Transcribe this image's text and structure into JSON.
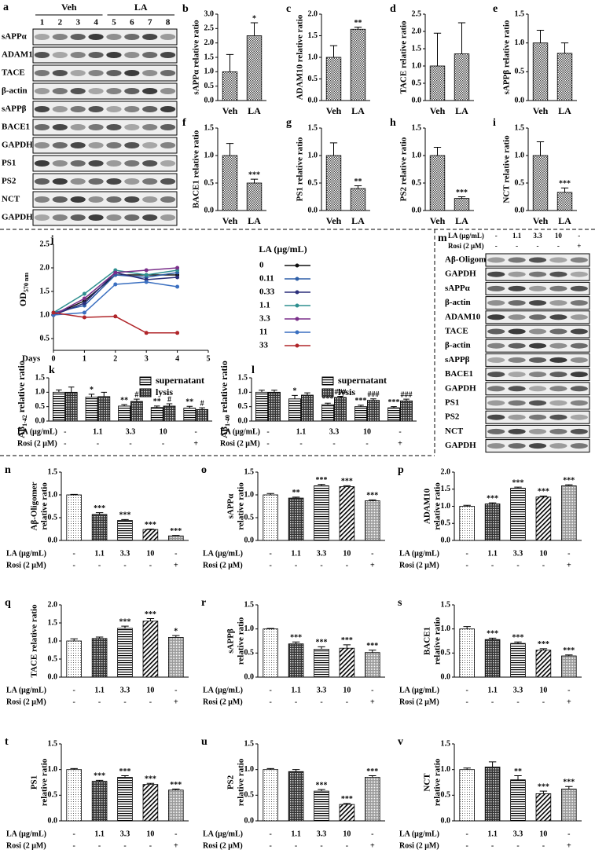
{
  "treatments": {
    "rows": [
      {
        "label": "LA (μg/mL)",
        "values": [
          "-",
          "1.1",
          "3.3",
          "10",
          "-"
        ]
      },
      {
        "label": "Rosi (2 μM)",
        "values": [
          "-",
          "-",
          "-",
          "-",
          "+"
        ]
      }
    ]
  },
  "blots": [
    {
      "panel": "a",
      "groups": [
        {
          "label": "Veh",
          "lanes": [
            "1",
            "2",
            "3",
            "4"
          ]
        },
        {
          "label": "LA",
          "lanes": [
            "5",
            "6",
            "7",
            "8"
          ]
        }
      ],
      "rows": [
        "sAPPα",
        "ADAM10",
        "TACE",
        "β-actin",
        "sAPPβ",
        "BACE1",
        "GAPDH",
        "PS1",
        "PS2",
        "NCT",
        "GAPDH"
      ]
    },
    {
      "panel": "m",
      "rows": [
        "Aβ-Oligomer",
        "GAPDH",
        "sAPPα",
        "β-actin",
        "ADAM10",
        "TACE",
        "β-actin",
        "sAPPβ",
        "BACE1",
        "GAPDH",
        "PS1",
        "PS2",
        "NCT",
        "GAPDH"
      ]
    }
  ],
  "chart_data": [
    {
      "type": "bar",
      "panel": "b",
      "ylabel": "sAPPα relative ratio",
      "categories": [
        "Veh",
        "LA"
      ],
      "values": [
        1.0,
        2.25
      ],
      "errors": [
        0.6,
        0.45
      ],
      "significance": [
        null,
        "*"
      ],
      "ylim": [
        0,
        3
      ],
      "yticks": [
        {
          "value": 0,
          "label": "0.0"
        },
        0.5,
        {
          "value": 1,
          "label": "1.0"
        },
        1.5,
        {
          "value": 2,
          "label": "2.0"
        },
        2.5,
        {
          "value": 3,
          "label": "3.0"
        }
      ]
    },
    {
      "type": "bar",
      "panel": "c",
      "ylabel": "ADAM10 relative ratio",
      "categories": [
        "Veh",
        "LA"
      ],
      "values": [
        1.0,
        1.65
      ],
      "errors": [
        0.27,
        0.05
      ],
      "significance": [
        null,
        "**"
      ],
      "ylim": [
        0,
        2
      ],
      "yticks": [
        {
          "value": 0,
          "label": "0.0"
        },
        0.5,
        {
          "value": 1,
          "label": "1.0"
        },
        1.5,
        {
          "value": 2,
          "label": "2.0"
        }
      ]
    },
    {
      "type": "bar",
      "panel": "d",
      "ylabel": "TACE relative ratio",
      "categories": [
        "Veh",
        "LA"
      ],
      "values": [
        1.0,
        1.35
      ],
      "errors": [
        0.95,
        0.9
      ],
      "significance": [
        null,
        null
      ],
      "ylim": [
        0,
        2.5
      ],
      "yticks": [
        {
          "value": 0,
          "label": "0.0"
        },
        0.5,
        {
          "value": 1,
          "label": "1.0"
        },
        1.5,
        {
          "value": 2,
          "label": "2.0"
        },
        2.5
      ]
    },
    {
      "type": "bar",
      "panel": "e",
      "ylabel": "sAPPβ relative ratio",
      "categories": [
        "Veh",
        "LA"
      ],
      "values": [
        1.0,
        0.82
      ],
      "errors": [
        0.22,
        0.18
      ],
      "significance": [
        null,
        null
      ],
      "ylim": [
        0,
        1.5
      ],
      "yticks": [
        {
          "value": 0,
          "label": "0.0"
        },
        0.5,
        {
          "value": 1,
          "label": "1.0"
        },
        1.5
      ]
    },
    {
      "type": "bar",
      "panel": "f",
      "ylabel": "BACE1 relative ratio",
      "categories": [
        "Veh",
        "LA"
      ],
      "values": [
        1.0,
        0.5
      ],
      "errors": [
        0.22,
        0.07
      ],
      "significance": [
        null,
        "***"
      ],
      "ylim": [
        0,
        1.5
      ],
      "yticks": [
        {
          "value": 0,
          "label": "0.0"
        },
        0.5,
        {
          "value": 1,
          "label": "1.0"
        },
        1.5
      ]
    },
    {
      "type": "bar",
      "panel": "g",
      "ylabel": "PS1 relative ratio",
      "categories": [
        "Veh",
        "LA"
      ],
      "values": [
        1.0,
        0.4
      ],
      "errors": [
        0.23,
        0.05
      ],
      "significance": [
        null,
        "**"
      ],
      "ylim": [
        0,
        1.5
      ],
      "yticks": [
        {
          "value": 0,
          "label": "0.0"
        },
        0.5,
        {
          "value": 1,
          "label": "1.0"
        },
        1.5
      ]
    },
    {
      "type": "bar",
      "panel": "h",
      "ylabel": "PS2 relative ratio",
      "categories": [
        "Veh",
        "LA"
      ],
      "values": [
        1.0,
        0.22
      ],
      "errors": [
        0.15,
        0.03
      ],
      "significance": [
        null,
        "***"
      ],
      "ylim": [
        0,
        1.5
      ],
      "yticks": [
        {
          "value": 0,
          "label": "0.0"
        },
        0.5,
        {
          "value": 1,
          "label": "1.0"
        },
        1.5
      ]
    },
    {
      "type": "bar",
      "panel": "i",
      "ylabel": "NCT relative ratio",
      "categories": [
        "Veh",
        "LA"
      ],
      "values": [
        1.0,
        0.33
      ],
      "errors": [
        0.25,
        0.08
      ],
      "significance": [
        null,
        "***"
      ],
      "ylim": [
        0,
        1.5
      ],
      "yticks": [
        {
          "value": 0,
          "label": "0.0"
        },
        0.5,
        {
          "value": 1,
          "label": "1.0"
        },
        1.5
      ]
    },
    {
      "type": "line",
      "panel": "j",
      "ylabel_parts": [
        {
          "text": "OD"
        },
        {
          "text": "570 nm",
          "sub": true
        }
      ],
      "xlabel": "Days",
      "legend_title": "LA (μg/mL)",
      "x": [
        0,
        1,
        2,
        3,
        4
      ],
      "xlim": [
        0,
        5
      ],
      "xticks": [
        0,
        1,
        2,
        3,
        4,
        5
      ],
      "ylim": [
        0.25,
        2.5
      ],
      "yticks": [
        0.5,
        {
          "value": 1,
          "label": "1.0"
        },
        1.5,
        {
          "value": 2,
          "label": "2.0"
        },
        2.5
      ],
      "series": [
        {
          "name": "0",
          "color": "#111111",
          "values": [
            1.0,
            1.3,
            1.85,
            1.85,
            1.85
          ]
        },
        {
          "name": "0.11",
          "color": "#2e5fa8",
          "values": [
            1.05,
            1.2,
            1.85,
            1.8,
            1.9
          ]
        },
        {
          "name": "0.33",
          "color": "#2b2f7a",
          "values": [
            1.0,
            1.25,
            1.9,
            1.75,
            1.8
          ]
        },
        {
          "name": "1.1",
          "color": "#2f8f8f",
          "values": [
            1.05,
            1.45,
            1.95,
            1.85,
            1.95
          ]
        },
        {
          "name": "3.3",
          "color": "#7a2f8a",
          "values": [
            1.0,
            1.35,
            1.9,
            1.95,
            2.0
          ]
        },
        {
          "name": "11",
          "color": "#3a6fc0",
          "values": [
            1.0,
            1.05,
            1.65,
            1.7,
            1.6
          ]
        },
        {
          "name": "33",
          "color": "#b0262a",
          "values": [
            1.05,
            0.95,
            0.97,
            0.62,
            0.62
          ]
        }
      ]
    },
    {
      "type": "grouped_bar",
      "panel": "k",
      "ylabel_parts": [
        {
          "text": "Aβ"
        },
        {
          "text": "1-42",
          "sub": true
        },
        {
          "text": " relative ratio"
        }
      ],
      "ylim": [
        0,
        1.5
      ],
      "yticks": [
        {
          "value": 0,
          "label": "0.0"
        },
        0.5,
        {
          "value": 1,
          "label": "1.0"
        },
        1.5
      ],
      "series": [
        {
          "name": "supernatant",
          "values": [
            1.0,
            0.83,
            0.52,
            0.47,
            0.45
          ],
          "errors": [
            0.08,
            0.1,
            0.05,
            0.05,
            0.06
          ],
          "significance": [
            null,
            "*",
            "**",
            "**",
            "**"
          ]
        },
        {
          "name": "lysis",
          "values": [
            1.0,
            0.85,
            0.68,
            0.52,
            0.4
          ],
          "errors": [
            0.18,
            0.15,
            0.08,
            0.08,
            0.06
          ],
          "significance": [
            null,
            null,
            "#",
            "#",
            "#"
          ]
        }
      ]
    },
    {
      "type": "grouped_bar",
      "panel": "l",
      "ylabel_parts": [
        {
          "text": "Aβ"
        },
        {
          "text": "1-40",
          "sub": true
        },
        {
          "text": " relative ratio"
        }
      ],
      "ylim": [
        0,
        1.5
      ],
      "yticks": [
        {
          "value": 0,
          "label": "0.0"
        },
        0.5,
        {
          "value": 1,
          "label": "1.0"
        },
        1.5
      ],
      "series": [
        {
          "name": "supernatant",
          "values": [
            1.0,
            0.77,
            0.57,
            0.5,
            0.46
          ],
          "errors": [
            0.07,
            0.12,
            0.05,
            0.05,
            0.04
          ],
          "significance": [
            null,
            "*",
            "***",
            "***",
            "***"
          ]
        },
        {
          "name": "lysis",
          "values": [
            1.0,
            0.9,
            0.82,
            0.72,
            0.7
          ],
          "errors": [
            0.07,
            0.08,
            0.04,
            0.05,
            0.06
          ],
          "significance": [
            null,
            null,
            "###",
            "###",
            "###"
          ]
        }
      ]
    },
    {
      "type": "treatment_bar",
      "panel": "n",
      "ylabel": [
        "Aβ-Oligomer",
        "relative ratio"
      ],
      "values": [
        1.0,
        0.57,
        0.44,
        0.24,
        0.1
      ],
      "errors": [
        0.01,
        0.04,
        0.02,
        0.01,
        0.01
      ],
      "significance": [
        null,
        "***",
        "***",
        "***",
        "***"
      ],
      "ylim": [
        0,
        1.5
      ],
      "yticks": [
        {
          "value": 0,
          "label": "0.0"
        },
        0.5,
        {
          "value": 1,
          "label": "1.0"
        },
        1.5
      ]
    },
    {
      "type": "treatment_bar",
      "panel": "o",
      "ylabel": [
        "sAPPα",
        "relative ratio"
      ],
      "values": [
        1.0,
        0.93,
        1.2,
        1.18,
        0.87
      ],
      "errors": [
        0.03,
        0.02,
        0.03,
        0.02,
        0.02
      ],
      "significance": [
        null,
        "**",
        "***",
        "***",
        "***"
      ],
      "ylim": [
        0,
        1.5
      ],
      "yticks": [
        {
          "value": 0,
          "label": "0.0"
        },
        0.5,
        {
          "value": 1,
          "label": "1.0"
        },
        1.5
      ]
    },
    {
      "type": "treatment_bar",
      "panel": "p",
      "ylabel": [
        "ADAM10",
        "relative ratio"
      ],
      "values": [
        1.0,
        1.07,
        1.53,
        1.27,
        1.6
      ],
      "errors": [
        0.03,
        0.03,
        0.03,
        0.03,
        0.03
      ],
      "significance": [
        null,
        "***",
        "***",
        "***",
        "***"
      ],
      "ylim": [
        0,
        2
      ],
      "yticks": [
        {
          "value": 0,
          "label": "0.0"
        },
        0.5,
        {
          "value": 1,
          "label": "1.0"
        },
        1.5,
        {
          "value": 2,
          "label": "2.0"
        }
      ]
    },
    {
      "type": "treatment_bar",
      "panel": "q",
      "ylabel": [
        "TACE relative ratio"
      ],
      "values": [
        1.0,
        1.07,
        1.35,
        1.55,
        1.1
      ],
      "errors": [
        0.06,
        0.04,
        0.06,
        0.07,
        0.05
      ],
      "significance": [
        null,
        null,
        "***",
        "***",
        "*"
      ],
      "ylim": [
        0,
        2
      ],
      "yticks": [
        {
          "value": 0,
          "label": "0.0"
        },
        0.5,
        {
          "value": 1,
          "label": "1.0"
        },
        1.5,
        {
          "value": 2,
          "label": "2.0"
        }
      ]
    },
    {
      "type": "treatment_bar",
      "panel": "r",
      "ylabel": [
        "sAPPβ",
        "relative ratio"
      ],
      "values": [
        1.0,
        0.69,
        0.58,
        0.6,
        0.51
      ],
      "errors": [
        0.01,
        0.04,
        0.05,
        0.07,
        0.05
      ],
      "significance": [
        null,
        "***",
        "***",
        "***",
        "***"
      ],
      "ylim": [
        0,
        1.5
      ],
      "yticks": [
        {
          "value": 0,
          "label": "0.0"
        },
        0.5,
        {
          "value": 1,
          "label": "1.0"
        },
        1.5
      ]
    },
    {
      "type": "treatment_bar",
      "panel": "s",
      "ylabel": [
        "BACE1",
        "relative ratio"
      ],
      "values": [
        1.0,
        0.78,
        0.7,
        0.56,
        0.44
      ],
      "errors": [
        0.05,
        0.03,
        0.03,
        0.03,
        0.02
      ],
      "significance": [
        null,
        "***",
        "***",
        "***",
        "***"
      ],
      "ylim": [
        0,
        1.5
      ],
      "yticks": [
        {
          "value": 0,
          "label": "0.0"
        },
        0.5,
        {
          "value": 1,
          "label": "1.0"
        },
        1.5
      ]
    },
    {
      "type": "treatment_bar",
      "panel": "t",
      "ylabel": [
        "PS1",
        "relative ratio"
      ],
      "values": [
        1.0,
        0.77,
        0.85,
        0.71,
        0.6
      ],
      "errors": [
        0.02,
        0.02,
        0.03,
        0.02,
        0.02
      ],
      "significance": [
        null,
        "***",
        "***",
        "***",
        "***"
      ],
      "ylim": [
        0,
        1.5
      ],
      "yticks": [
        {
          "value": 0,
          "label": "0.0"
        },
        0.5,
        {
          "value": 1,
          "label": "1.0"
        },
        1.5
      ]
    },
    {
      "type": "treatment_bar",
      "panel": "u",
      "ylabel": [
        "PS2",
        "relative ratio"
      ],
      "values": [
        1.0,
        0.96,
        0.58,
        0.32,
        0.85
      ],
      "errors": [
        0.02,
        0.04,
        0.03,
        0.02,
        0.03
      ],
      "significance": [
        null,
        null,
        "***",
        "***",
        "***"
      ],
      "ylim": [
        0,
        1.5
      ],
      "yticks": [
        {
          "value": 0,
          "label": "0.0"
        },
        0.5,
        {
          "value": 1,
          "label": "1.0"
        },
        1.5
      ]
    },
    {
      "type": "treatment_bar",
      "panel": "v",
      "ylabel": [
        "NCT",
        "relative ratio"
      ],
      "values": [
        1.0,
        1.05,
        0.8,
        0.53,
        0.62
      ],
      "errors": [
        0.03,
        0.1,
        0.08,
        0.05,
        0.05
      ],
      "significance": [
        null,
        null,
        "**",
        "***",
        "***"
      ],
      "ylim": [
        0,
        1.5
      ],
      "yticks": [
        {
          "value": 0,
          "label": "0.0"
        },
        0.5,
        {
          "value": 1,
          "label": "1.0"
        },
        1.5
      ]
    }
  ]
}
